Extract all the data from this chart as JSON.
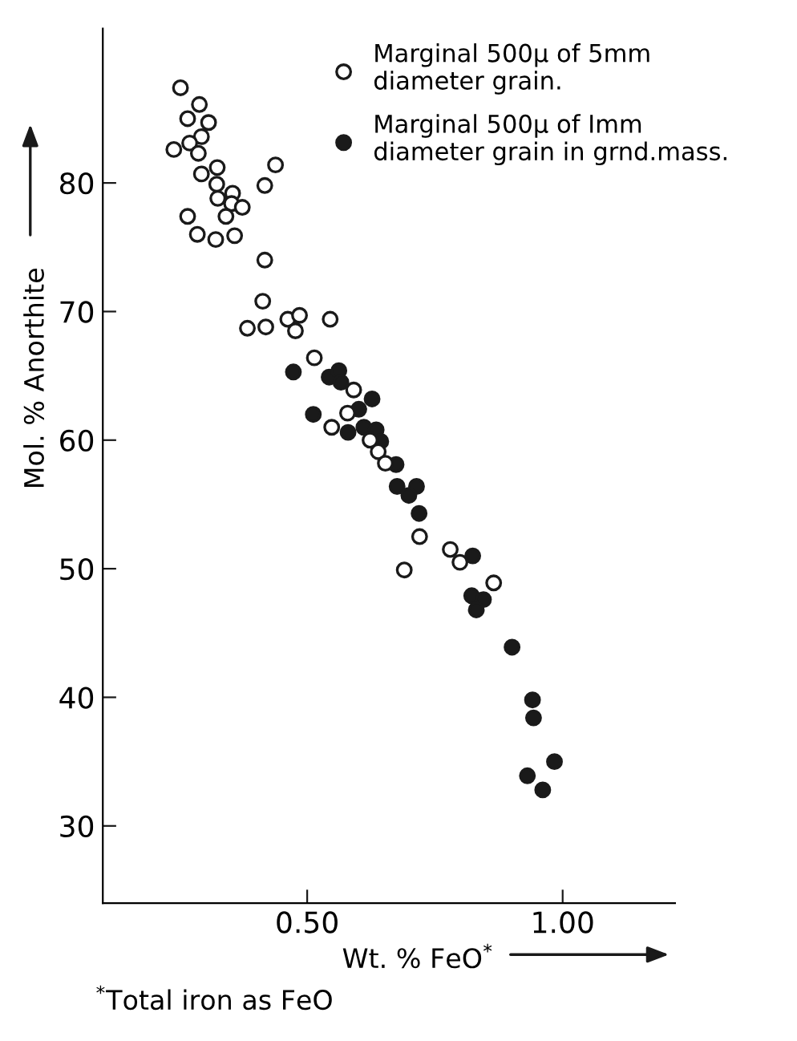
{
  "chart_data": {
    "type": "scatter",
    "xlabel": "Wt. % FeO$^{*}$",
    "ylabel": "Mol. % Anorthite",
    "annotations": [
      "$^{*}$Total iron as FeO"
    ],
    "xlim": [
      0.1,
      1.22
    ],
    "ylim": [
      24,
      92
    ],
    "xticks": [
      {
        "value": 0.5,
        "label": "0.50"
      },
      {
        "value": 1.0,
        "label": "1.00"
      }
    ],
    "yticks": [
      30,
      40,
      50,
      60,
      70,
      80
    ],
    "marker": "circle",
    "grid": false,
    "legend": "top right",
    "series": [
      {
        "name": "Marginal 500μ of 5mm\ndiameter grain.",
        "color": "#ffffff",
        "x": [
          0.252,
          0.289,
          0.266,
          0.307,
          0.293,
          0.27,
          0.239,
          0.287,
          0.293,
          0.324,
          0.438,
          0.417,
          0.323,
          0.325,
          0.354,
          0.352,
          0.373,
          0.341,
          0.266,
          0.285,
          0.321,
          0.358,
          0.417,
          0.413,
          0.383,
          0.419,
          0.462,
          0.485,
          0.477,
          0.545,
          0.514,
          0.591,
          0.579,
          0.548,
          0.623,
          0.639,
          0.653,
          0.72,
          0.69,
          0.78,
          0.799,
          0.865
        ],
        "values": [
          87.4,
          86.1,
          85.0,
          84.7,
          83.6,
          83.1,
          82.6,
          82.3,
          80.7,
          81.2,
          81.4,
          79.8,
          79.9,
          78.8,
          79.2,
          78.4,
          78.1,
          77.4,
          77.4,
          76.0,
          75.6,
          75.9,
          74.0,
          70.8,
          68.7,
          68.8,
          69.4,
          69.7,
          68.5,
          69.4,
          66.4,
          63.9,
          62.1,
          61.0,
          60.0,
          59.1,
          58.2,
          52.5,
          49.9,
          51.5,
          50.5,
          48.9
        ]
      },
      {
        "name": "Marginal 500μ of Imm\ndiameter grain in grnd.mass.",
        "color": "#1a1a1a",
        "x": [
          0.473,
          0.543,
          0.562,
          0.566,
          0.627,
          0.601,
          0.512,
          0.58,
          0.611,
          0.635,
          0.644,
          0.674,
          0.676,
          0.714,
          0.699,
          0.719,
          0.824,
          0.822,
          0.845,
          0.831,
          0.901,
          0.941,
          0.943,
          0.984,
          0.931,
          0.961
        ],
        "values": [
          65.3,
          64.9,
          65.4,
          64.5,
          63.2,
          62.4,
          62.0,
          60.6,
          61.0,
          60.8,
          59.9,
          58.1,
          56.4,
          56.4,
          55.7,
          54.3,
          51.0,
          47.9,
          47.6,
          46.8,
          43.9,
          39.8,
          38.4,
          35.0,
          33.9,
          32.8
        ]
      }
    ]
  }
}
